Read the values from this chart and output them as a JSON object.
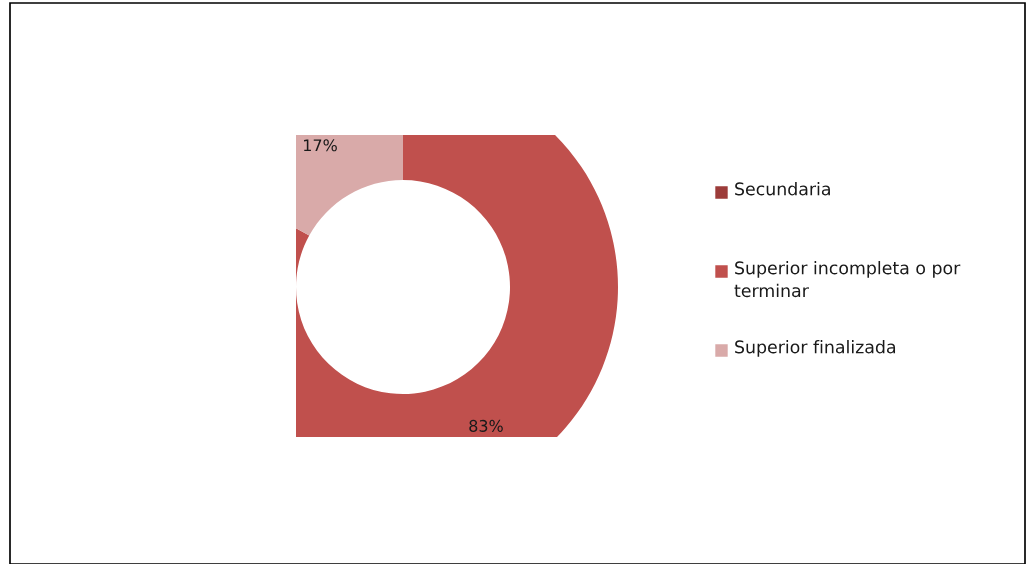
{
  "chart_data": {
    "type": "donut",
    "categories": [
      "Secundaria",
      "Superior incompleta o por terminar",
      "Superior finalizada"
    ],
    "values": [
      0,
      83,
      17
    ],
    "colors": [
      "#9c3c3a",
      "#c0504d",
      "#d9aaa9"
    ],
    "value_labels": [
      null,
      "83%",
      "17%"
    ],
    "legend": "right"
  }
}
